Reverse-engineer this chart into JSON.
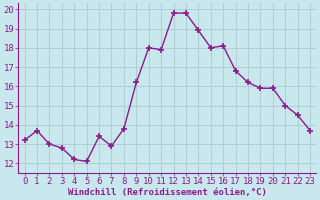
{
  "x": [
    0,
    1,
    2,
    3,
    4,
    5,
    6,
    7,
    8,
    9,
    10,
    11,
    12,
    13,
    14,
    15,
    16,
    17,
    18,
    19,
    20,
    21,
    22,
    23
  ],
  "y": [
    13.2,
    13.7,
    13.0,
    12.8,
    12.2,
    12.1,
    13.4,
    12.9,
    13.8,
    16.2,
    18.0,
    17.9,
    19.8,
    19.8,
    18.9,
    18.0,
    18.1,
    16.8,
    16.2,
    15.9,
    15.9,
    15.0,
    14.5,
    13.7
  ],
  "line_color": "#8b1a8b",
  "marker": "+",
  "marker_size": 4,
  "marker_lw": 1.2,
  "bg_color": "#c8e8ee",
  "grid_color": "#b0cdd4",
  "xlabel": "Windchill (Refroidissement éolien,°C)",
  "xlabel_color": "#8b1a8b",
  "ylabel_ticks": [
    12,
    13,
    14,
    15,
    16,
    17,
    18,
    19,
    20
  ],
  "xticks": [
    0,
    1,
    2,
    3,
    4,
    5,
    6,
    7,
    8,
    9,
    10,
    11,
    12,
    13,
    14,
    15,
    16,
    17,
    18,
    19,
    20,
    21,
    22,
    23
  ],
  "ylim": [
    11.5,
    20.3
  ],
  "xlim": [
    -0.5,
    23.5
  ],
  "tick_color": "#8b1a8b",
  "font_size_label": 6.5,
  "font_size_tick": 6.5,
  "spine_color": "#8b1a8b",
  "line_width": 1.0
}
